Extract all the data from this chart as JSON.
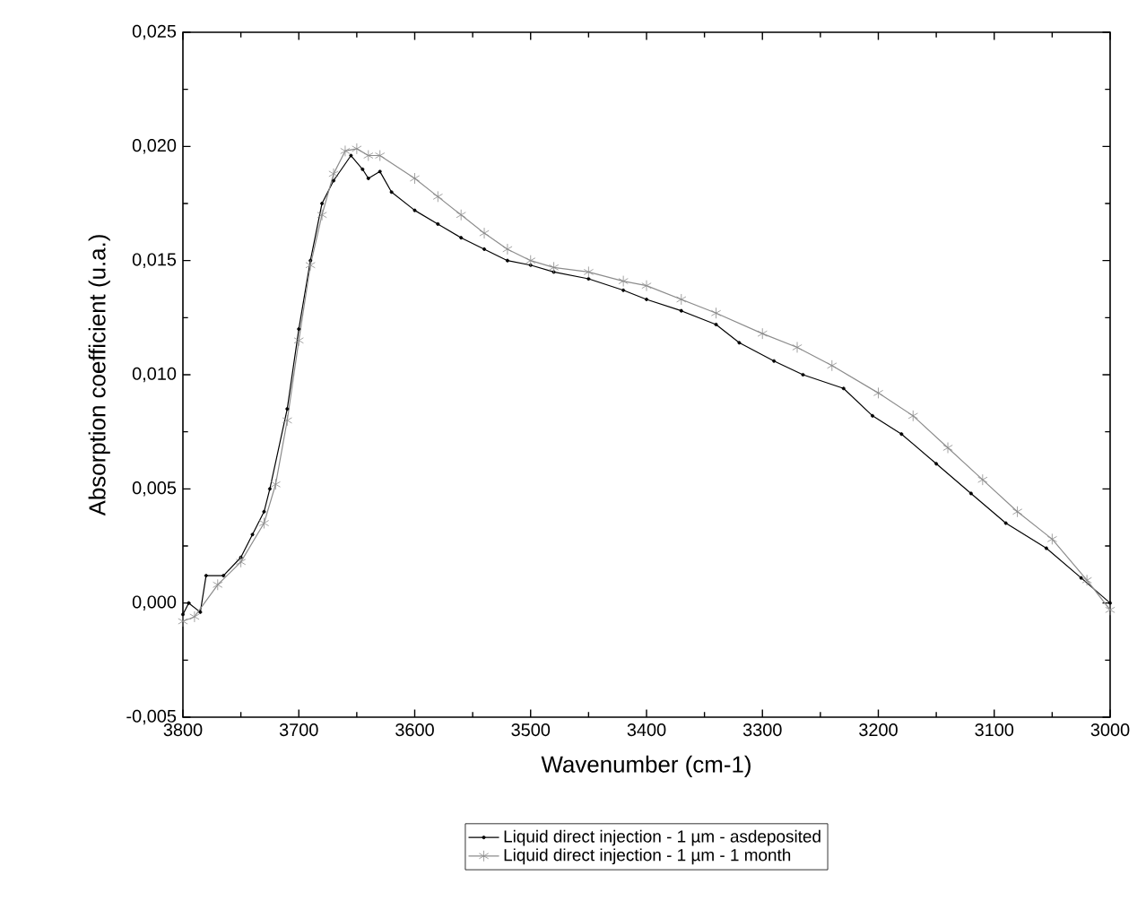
{
  "chart_data": {
    "type": "line",
    "xlabel": "Wavenumber (cm-1)",
    "ylabel": "Absorption coefficient (u.a.)",
    "xlim": [
      3800,
      3000
    ],
    "xticks": [
      3800,
      3700,
      3600,
      3500,
      3400,
      3300,
      3200,
      3100,
      3000
    ],
    "ylim": [
      -0.005,
      0.025
    ],
    "yticks": [
      {
        "value": -0.005,
        "label": "-0,005"
      },
      {
        "value": 0,
        "label": "0,000"
      },
      {
        "value": 0.005,
        "label": "0,005"
      },
      {
        "value": 0.01,
        "label": "0,010"
      },
      {
        "value": 0.015,
        "label": "0,015"
      },
      {
        "value": 0.02,
        "label": "0,020"
      },
      {
        "value": 0.025,
        "label": "0,025"
      }
    ],
    "grid": false,
    "legend": "bottom",
    "line_style": "solid",
    "series": [
      {
        "name": "Liquid direct injection - 1 µm - asdeposited",
        "color": "#000000",
        "marker": "circle",
        "x": [
          3800,
          3795,
          3785,
          3780,
          3765,
          3750,
          3740,
          3730,
          3725,
          3710,
          3700,
          3690,
          3680,
          3670,
          3655,
          3645,
          3640,
          3630,
          3620,
          3600,
          3580,
          3560,
          3540,
          3520,
          3500,
          3480,
          3450,
          3420,
          3400,
          3370,
          3340,
          3320,
          3290,
          3265,
          3230,
          3205,
          3180,
          3150,
          3120,
          3090,
          3055,
          3025,
          3000
        ],
        "values": [
          -0.0005,
          0.0,
          -0.0004,
          0.0012,
          0.0012,
          0.002,
          0.003,
          0.004,
          0.005,
          0.0085,
          0.012,
          0.015,
          0.0175,
          0.0185,
          0.0196,
          0.019,
          0.0186,
          0.0189,
          0.018,
          0.0172,
          0.0166,
          0.016,
          0.0155,
          0.015,
          0.0148,
          0.0145,
          0.0142,
          0.0137,
          0.0133,
          0.0128,
          0.0122,
          0.0114,
          0.0106,
          0.01,
          0.0094,
          0.0082,
          0.0074,
          0.0061,
          0.0048,
          0.0035,
          0.0024,
          0.0011,
          0.0
        ]
      },
      {
        "name": "Liquid direct injection - 1 µm - 1 month",
        "color": "#8c8c8c",
        "marker": "cross",
        "x": [
          3800,
          3790,
          3770,
          3750,
          3730,
          3720,
          3710,
          3700,
          3690,
          3680,
          3670,
          3660,
          3650,
          3640,
          3630,
          3600,
          3580,
          3560,
          3540,
          3520,
          3500,
          3480,
          3450,
          3420,
          3400,
          3370,
          3340,
          3300,
          3270,
          3240,
          3200,
          3170,
          3140,
          3110,
          3080,
          3050,
          3020,
          3000
        ],
        "values": [
          -0.0008,
          -0.0006,
          0.0008,
          0.0018,
          0.0035,
          0.0052,
          0.008,
          0.0115,
          0.0148,
          0.017,
          0.0188,
          0.0198,
          0.0199,
          0.0196,
          0.0196,
          0.0186,
          0.0178,
          0.017,
          0.0162,
          0.0155,
          0.015,
          0.0147,
          0.0145,
          0.0141,
          0.0139,
          0.0133,
          0.0127,
          0.0118,
          0.0112,
          0.0104,
          0.0092,
          0.0082,
          0.0068,
          0.0054,
          0.004,
          0.0028,
          0.001,
          -0.0003
        ]
      }
    ]
  }
}
